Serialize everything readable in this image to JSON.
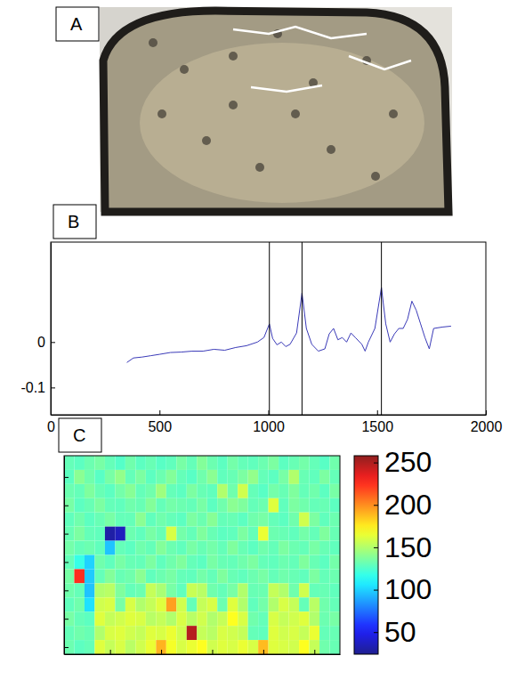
{
  "chart_data": [
    {
      "type": "image",
      "panel": "A"
    },
    {
      "type": "line",
      "panel": "B",
      "x": [
        350,
        380,
        420,
        460,
        500,
        550,
        600,
        650,
        700,
        750,
        800,
        850,
        900,
        950,
        980,
        1005,
        1020,
        1040,
        1060,
        1080,
        1100,
        1130,
        1155,
        1175,
        1200,
        1230,
        1260,
        1280,
        1300,
        1320,
        1340,
        1360,
        1380,
        1400,
        1430,
        1445,
        1460,
        1490,
        1520,
        1540,
        1560,
        1580,
        1600,
        1620,
        1640,
        1660,
        1680,
        1700,
        1720,
        1740,
        1760,
        1800,
        1840
      ],
      "values": [
        -0.045,
        -0.035,
        -0.033,
        -0.03,
        -0.027,
        -0.023,
        -0.022,
        -0.02,
        -0.02,
        -0.016,
        -0.018,
        -0.012,
        -0.008,
        0.0,
        0.01,
        0.04,
        0.008,
        -0.006,
        0.0,
        -0.01,
        -0.005,
        0.02,
        0.108,
        0.03,
        -0.005,
        -0.02,
        -0.015,
        0.018,
        0.03,
        0.005,
        0.01,
        0.0,
        0.02,
        0.01,
        -0.005,
        -0.02,
        0.0,
        0.03,
        0.12,
        0.04,
        0.0,
        0.018,
        0.03,
        0.03,
        0.05,
        0.09,
        0.07,
        0.04,
        0.01,
        -0.015,
        0.03,
        0.033,
        0.035
      ],
      "color": "#3a3ab8",
      "xlim": [
        0,
        2000
      ],
      "xticks": [
        0,
        500,
        1000,
        1500,
        2000
      ],
      "ylim": [
        -0.16,
        0.22
      ],
      "yticks": [
        -0.1,
        0
      ],
      "vlines": [
        1005,
        1155,
        1520
      ]
    },
    {
      "type": "heatmap",
      "panel": "C",
      "cells": [
        [
          130,
          128,
          132,
          135,
          130,
          126,
          133,
          128,
          131,
          127,
          129,
          135,
          130,
          138,
          132,
          128,
          134,
          130,
          129,
          132,
          136,
          128,
          131,
          134,
          130,
          127,
          133
        ],
        [
          128,
          140,
          133,
          127,
          135,
          142,
          130,
          136,
          128,
          132,
          138,
          130,
          127,
          133,
          140,
          129,
          131,
          136,
          142,
          130,
          128,
          135,
          150,
          131,
          129,
          136,
          130
        ],
        [
          132,
          130,
          137,
          131,
          128,
          134,
          139,
          130,
          133,
          145,
          130,
          128,
          136,
          131,
          129,
          150,
          133,
          158,
          130,
          127,
          134,
          131,
          137,
          130,
          133,
          128,
          135
        ],
        [
          135,
          128,
          131,
          136,
          130,
          129,
          133,
          131,
          138,
          130,
          134,
          132,
          130,
          135,
          128,
          133,
          140,
          137,
          130,
          132,
          162,
          129,
          136,
          133,
          130,
          131,
          128
        ],
        [
          129,
          133,
          128,
          131,
          135,
          130,
          130,
          140,
          129,
          133,
          130,
          128,
          136,
          132,
          139,
          130,
          131,
          128,
          133,
          135,
          130,
          128,
          133,
          158,
          136,
          129,
          132
        ],
        [
          131,
          136,
          130,
          129,
          30,
          36,
          132,
          129,
          135,
          131,
          160,
          134,
          130,
          137,
          131,
          128,
          129,
          136,
          130,
          165,
          132,
          131,
          129,
          134,
          130,
          137,
          131
        ],
        [
          134,
          130,
          132,
          129,
          96,
          130,
          128,
          133,
          130,
          138,
          132,
          129,
          135,
          131,
          134,
          130,
          137,
          131,
          128,
          133,
          130,
          136,
          132,
          130,
          135,
          131,
          129
        ],
        [
          130,
          118,
          100,
          133,
          129,
          135,
          131,
          130,
          136,
          129,
          133,
          137,
          130,
          128,
          135,
          131,
          130,
          133,
          136,
          130,
          129,
          132,
          130,
          137,
          131,
          128,
          134
        ],
        [
          135,
          225,
          98,
          130,
          138,
          131,
          133,
          140,
          129,
          132,
          135,
          130,
          129,
          134,
          130,
          137,
          131,
          129,
          132,
          135,
          130,
          133,
          131,
          129,
          136,
          130,
          132
        ],
        [
          133,
          130,
          96,
          150,
          152,
          137,
          130,
          132,
          155,
          148,
          135,
          129,
          156,
          152,
          133,
          130,
          135,
          150,
          131,
          132,
          155,
          150,
          133,
          158,
          130,
          131,
          129
        ],
        [
          129,
          133,
          104,
          158,
          160,
          135,
          160,
          150,
          155,
          162,
          195,
          158,
          130,
          155,
          160,
          132,
          162,
          150,
          129,
          134,
          150,
          160,
          155,
          130,
          152,
          133,
          130
        ],
        [
          135,
          130,
          128,
          162,
          155,
          158,
          162,
          160,
          152,
          155,
          150,
          160,
          152,
          158,
          150,
          155,
          170,
          160,
          133,
          130,
          160,
          155,
          158,
          162,
          150,
          132,
          135
        ],
        [
          130,
          133,
          131,
          150,
          160,
          162,
          158,
          155,
          162,
          160,
          165,
          158,
          248,
          155,
          152,
          160,
          158,
          155,
          130,
          129,
          162,
          158,
          160,
          155,
          165,
          130,
          131
        ],
        [
          132,
          128,
          130,
          162,
          155,
          160,
          152,
          158,
          165,
          190,
          168,
          160,
          165,
          170,
          158,
          162,
          160,
          165,
          160,
          188,
          162,
          160,
          158,
          170,
          155,
          133,
          131
        ]
      ],
      "xlim": [
        0.5,
        27.5
      ],
      "xticks": [
        5,
        10,
        15,
        20,
        25
      ],
      "ylim": [
        0.5,
        14.5
      ],
      "yticks": [
        2,
        4,
        6,
        8,
        10,
        12,
        14
      ],
      "tick_labels": false,
      "colorbar": {
        "range": [
          24,
          258
        ],
        "ticks": [
          50,
          100,
          150,
          200,
          250
        ]
      }
    }
  ]
}
